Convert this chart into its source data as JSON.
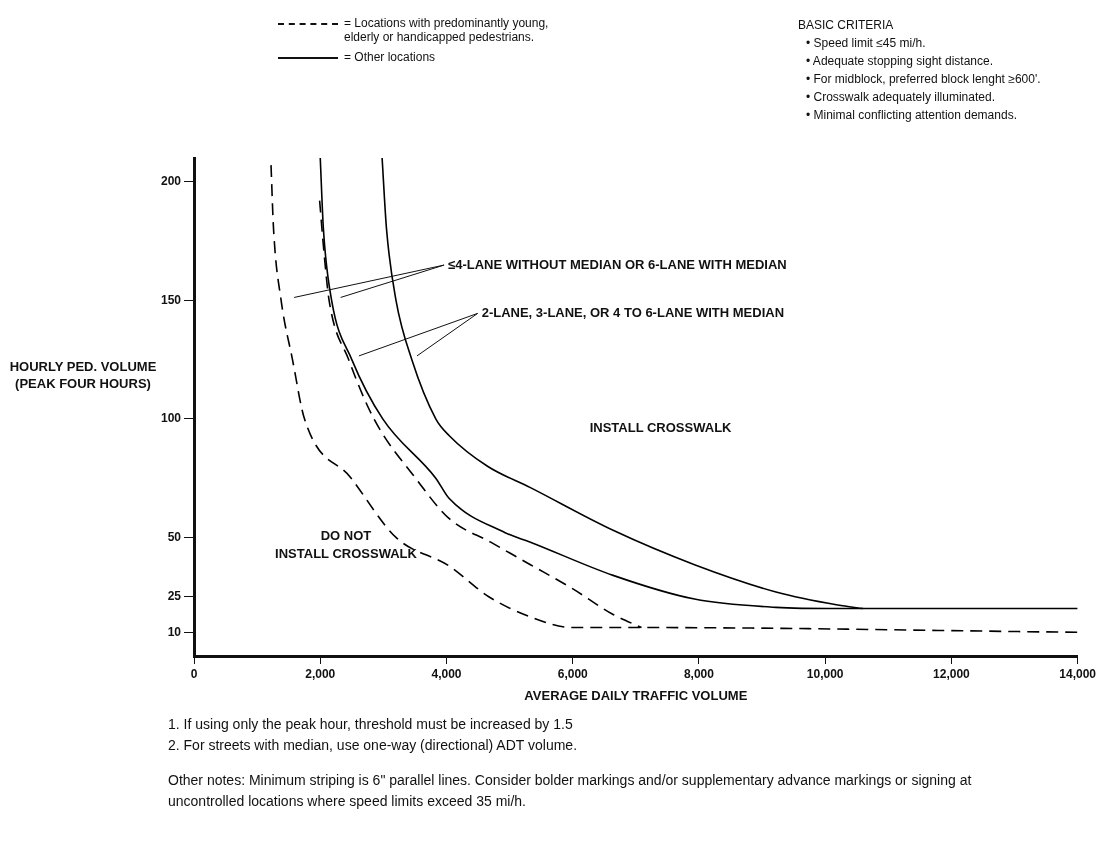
{
  "chart_data": {
    "type": "line",
    "xlabel": "AVERAGE DAILY TRAFFIC VOLUME",
    "ylabel": "HOURLY PED. VOLUME (PEAK FOUR HOURS)",
    "xlim": [
      0,
      14000
    ],
    "xticks": [
      0,
      {
        "value": 2000,
        "label": "2,000"
      },
      {
        "value": 4000,
        "label": "4,000"
      },
      {
        "value": 6000,
        "label": "6,000"
      },
      {
        "value": 8000,
        "label": "8,000"
      },
      {
        "value": 10000,
        "label": "10,000"
      },
      {
        "value": 12000,
        "label": "12,000"
      },
      {
        "value": 14000,
        "label": "14,000"
      }
    ],
    "ylim": [
      0,
      210
    ],
    "yticks": [
      10,
      25,
      50,
      100,
      150,
      200
    ],
    "marker": "none",
    "series": [
      {
        "color": "#000000",
        "line_style": "dashed",
        "x": [
          1220,
          1260,
          1380,
          1560,
          1750,
          2490,
          3200,
          4040,
          4670,
          5330,
          5990,
          7090,
          14000
        ],
        "values": [
          207,
          180,
          150,
          125,
          100,
          75,
          50,
          38,
          25,
          16.5,
          12,
          12,
          10
        ]
      },
      {
        "color": "#000000",
        "line_style": "dashed",
        "x": [
          1990,
          2060,
          2140,
          2450,
          2850,
          3510,
          4040,
          4700,
          5330,
          5990,
          6640,
          7090
        ],
        "values": [
          192,
          170,
          150,
          125,
          100,
          75,
          58,
          48,
          38.5,
          28.5,
          17.5,
          12
        ]
      },
      {
        "color": "#000000",
        "line_style": "solid",
        "x": [
          2000,
          2050,
          2180,
          2500,
          2990,
          3830,
          4040,
          4930,
          5330,
          6640,
          7930,
          9220,
          10200,
          14000
        ],
        "values": [
          210,
          180,
          150,
          125,
          100,
          75,
          66.5,
          52,
          48,
          34,
          24,
          20.5,
          20,
          20
        ]
      },
      {
        "color": "#000000",
        "line_style": "solid",
        "x": [
          2980,
          3050,
          3200,
          3450,
          3830,
          4040,
          4650,
          5330,
          6640,
          7930,
          9220,
          10200,
          10600
        ],
        "values": [
          210,
          180,
          150,
          125,
          100,
          93,
          80,
          71,
          53,
          38.5,
          27,
          21.5,
          20
        ]
      }
    ],
    "annotations": [
      "= Locations with predominantly young, elderly or handicapped pedestrians.",
      "= Other locations",
      "BASIC CRITERIA",
      "• Speed limit ≤45 mi/h.",
      "• Adequate stopping sight distance.",
      "• For midblock, preferred block lenght ≥600'.",
      "• Crosswalk adequately illuminated.",
      "• Minimal conflicting attention demands.",
      "≤4-LANE WITHOUT MEDIAN OR 6-LANE WITH MEDIAN",
      "2-LANE, 3-LANE, OR 4 TO 6-LANE WITH MEDIAN",
      "DO NOT\nINSTALL CROSSWALK",
      "INSTALL CROSSWALK",
      "1. If using only the peak hour, threshold must be increased by 1.5",
      "2. For streets with median, use one-way (directional) ADT volume.",
      "Other notes: Minimum striping is 6\" parallel lines. Consider bolder markings and/or supplementary advance markings or signing at uncontrolled locations where speed limits exceed 35 mi/h."
    ]
  }
}
